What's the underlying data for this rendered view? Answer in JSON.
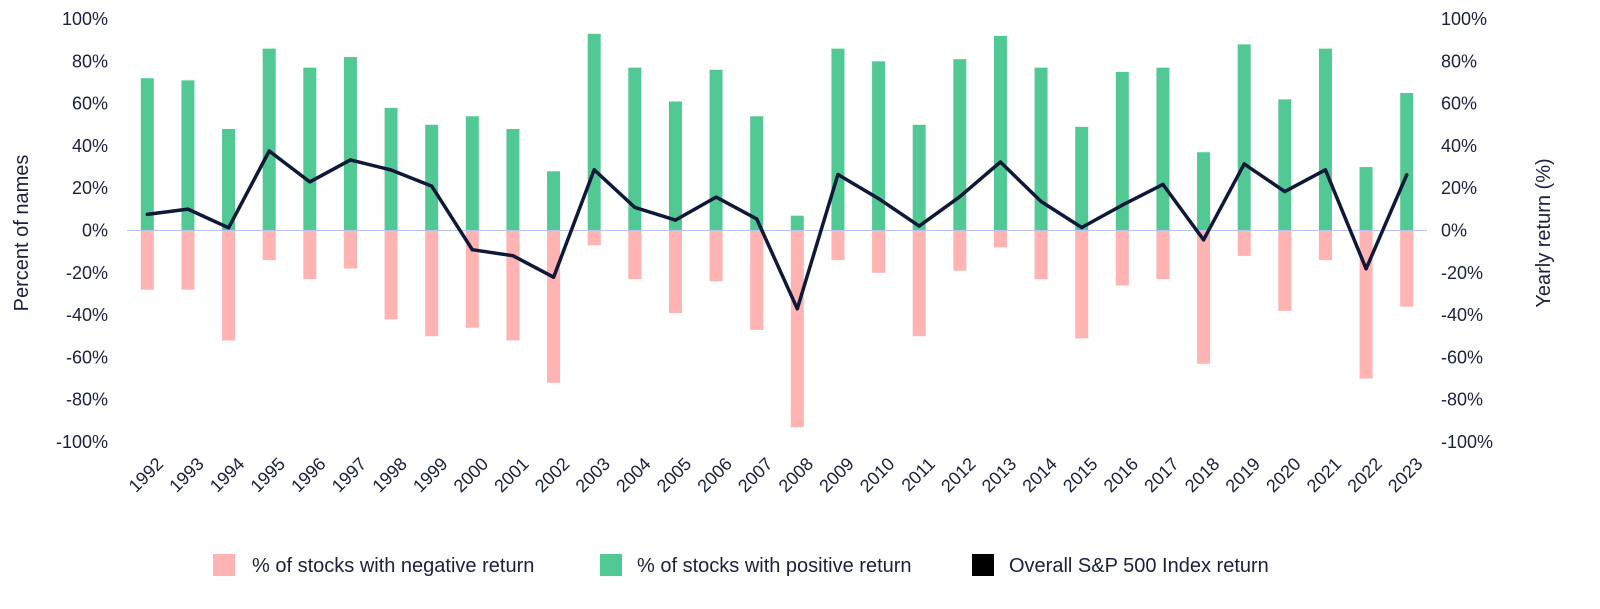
{
  "chart_data": {
    "type": "bar",
    "title": "",
    "categories": [
      "1992",
      "1993",
      "1994",
      "1995",
      "1996",
      "1997",
      "1998",
      "1999",
      "2000",
      "2001",
      "2002",
      "2003",
      "2004",
      "2005",
      "2006",
      "2007",
      "2008",
      "2009",
      "2010",
      "2011",
      "2012",
      "2013",
      "2014",
      "2015",
      "2016",
      "2017",
      "2018",
      "2019",
      "2020",
      "2021",
      "2022",
      "2023"
    ],
    "series": [
      {
        "name": "% of stocks with negative return",
        "type": "bar",
        "axis": "left",
        "color": "#ffb3b3",
        "values": [
          -28,
          -28,
          -52,
          -14,
          -23,
          -18,
          -42,
          -50,
          -46,
          -52,
          -72,
          -7,
          -23,
          -39,
          -24,
          -47,
          -93,
          -14,
          -20,
          -50,
          -19,
          -8,
          -23,
          -51,
          -26,
          -23,
          -63,
          -12,
          -38,
          -14,
          -70,
          -36
        ]
      },
      {
        "name": "% of stocks with positive return",
        "type": "bar",
        "axis": "left",
        "color": "#52c994",
        "values": [
          72,
          71,
          48,
          86,
          77,
          82,
          58,
          50,
          54,
          48,
          28,
          93,
          77,
          61,
          76,
          54,
          7,
          86,
          80,
          50,
          81,
          92,
          77,
          49,
          75,
          77,
          37,
          88,
          62,
          86,
          30,
          65
        ]
      },
      {
        "name": "Overall S&P 500 Index return",
        "type": "line",
        "axis": "right",
        "color": "#0e1838",
        "values": [
          7.6,
          10.1,
          1.3,
          37.6,
          23.0,
          33.4,
          28.6,
          21.0,
          -9.1,
          -11.9,
          -22.1,
          28.7,
          10.9,
          4.9,
          15.8,
          5.5,
          -37.0,
          26.5,
          15.1,
          2.1,
          16.0,
          32.4,
          13.7,
          1.4,
          12.0,
          21.8,
          -4.4,
          31.5,
          18.4,
          28.7,
          -18.1,
          26.3
        ]
      }
    ],
    "ylim": [
      -100,
      100
    ],
    "ylabel": "Percent of names",
    "ylabel_right": "Yearly return (%)",
    "y_ticks": [
      "100%",
      "80%",
      "60%",
      "40%",
      "20%",
      "0%",
      "-20%",
      "-40%",
      "-60%",
      "-80%",
      "-100%"
    ],
    "y_ticks_right": [
      "100%",
      "80%",
      "60%",
      "40%",
      "20%",
      "0%",
      "-20%",
      "-40%",
      "-60%",
      "-80%",
      "-100%"
    ],
    "grid": false,
    "legend_position": "bottom"
  },
  "legend": [
    {
      "label": "% of stocks with negative return",
      "color": "#ffb3b3"
    },
    {
      "label": "% of stocks with positive return",
      "color": "#52c994"
    },
    {
      "label": "Overall S&P 500 Index return",
      "color": "#000000"
    }
  ]
}
